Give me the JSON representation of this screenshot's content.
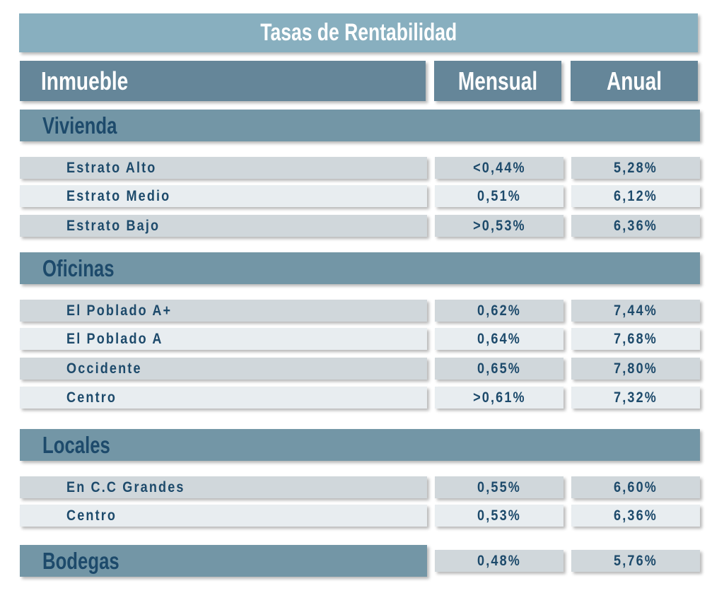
{
  "title": "Tasas de Rentabilidad",
  "headers": {
    "inmueble": "Inmueble",
    "mensual": "Mensual",
    "anual": "Anual"
  },
  "sections": [
    {
      "name": "Vivienda",
      "rows": [
        {
          "label": "Estrato Alto",
          "mensual": "<0,44%",
          "anual": "5,28%"
        },
        {
          "label": "Estrato Medio",
          "mensual": "0,51%",
          "anual": "6,12%"
        },
        {
          "label": "Estrato Bajo",
          "mensual": ">0,53%",
          "anual": "6,36%"
        }
      ]
    },
    {
      "name": "Oficinas",
      "rows": [
        {
          "label": "El Poblado A+",
          "mensual": "0,62%",
          "anual": "7,44%"
        },
        {
          "label": "El Poblado A",
          "mensual": "0,64%",
          "anual": "7,68%"
        },
        {
          "label": "Occidente",
          "mensual": "0,65%",
          "anual": "7,80%"
        },
        {
          "label": "Centro",
          "mensual": ">0,61%",
          "anual": "7,32%"
        }
      ]
    },
    {
      "name": "Locales",
      "rows": [
        {
          "label": "En C.C Grandes",
          "mensual": "0,55%",
          "anual": "6,60%"
        },
        {
          "label": "Centro",
          "mensual": "0,53%",
          "anual": "6,36%"
        }
      ]
    },
    {
      "name": "Bodegas",
      "mensual": "0,48%",
      "anual": "5,76%"
    }
  ],
  "colors": {
    "title_bg": "#88afbf",
    "header_bg": "#658699",
    "section_bg": "#7396a6",
    "row_dark": "#d0d7db",
    "row_light": "#e8edf0",
    "text": "#1d4a6b"
  }
}
